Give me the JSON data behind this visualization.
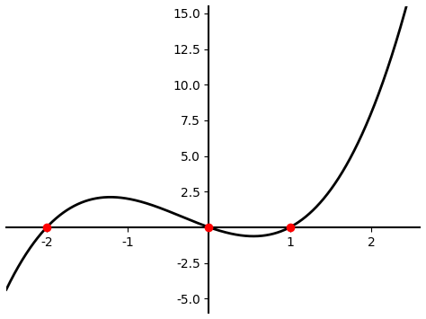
{
  "equation_roots": [
    -2,
    0,
    1
  ],
  "x_min": -2.5,
  "x_max": 2.6,
  "y_min": -6.0,
  "y_max": 15.5,
  "line_color": "#000000",
  "line_width": 2.0,
  "root_marker_color": "red",
  "root_marker_size": 7,
  "spine_color": "#000000",
  "spine_linewidth": 1.5,
  "tick_color": "#000000",
  "background_color": "#ffffff",
  "x_ticks": [
    -2,
    -1,
    1,
    2
  ],
  "y_ticks": [
    -5.0,
    -2.5,
    2.5,
    5.0,
    7.5,
    10.0,
    12.5,
    15.0
  ],
  "figsize": [
    4.74,
    3.55
  ],
  "dpi": 100
}
